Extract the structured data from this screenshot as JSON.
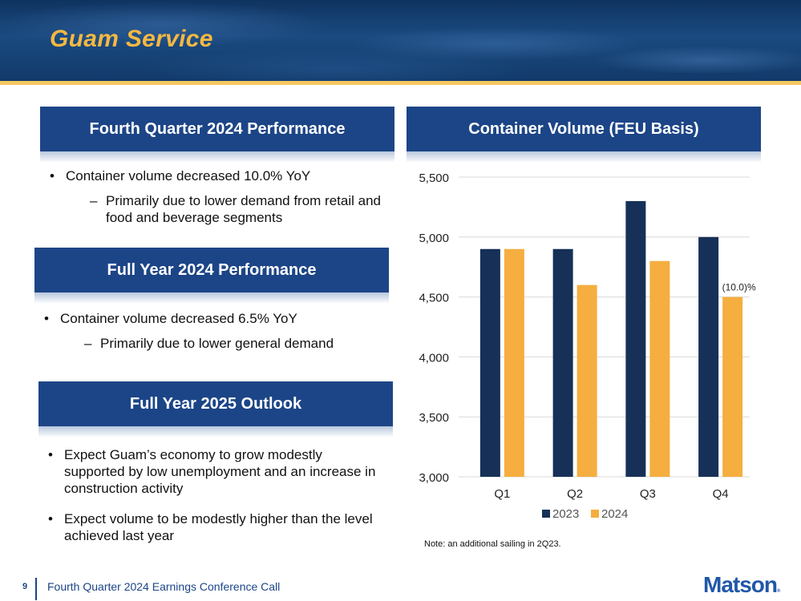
{
  "page": {
    "title": "Guam Service",
    "footer": {
      "page_number": "9",
      "text": "Fourth Quarter 2024 Earnings Conference Call",
      "logo": "Matson",
      "logo_mark": "®"
    }
  },
  "colors": {
    "title": "#f5b841",
    "header_bg": "#1c4587",
    "series_2023": "#163057",
    "series_2024": "#f5ae3f",
    "accent_stripe": "#f5c862"
  },
  "sections": [
    {
      "header": "Fourth Quarter 2024 Performance",
      "bullets": [
        {
          "text": "Container volume decreased 10.0% YoY",
          "sub": [
            "Primarily due to lower demand from retail and food and beverage segments"
          ]
        }
      ]
    },
    {
      "header": "Full Year 2024 Performance",
      "bullets": [
        {
          "text": "Container volume decreased 6.5% YoY",
          "sub": [
            "Primarily due to lower general demand"
          ]
        }
      ]
    },
    {
      "header": "Full Year 2025 Outlook",
      "bullets": [
        {
          "text": "Expect Guam’s economy to grow modestly supported by low unemployment and an increase in construction activity",
          "sub": []
        },
        {
          "text": "Expect volume to be modestly higher than the level achieved last year",
          "sub": []
        }
      ]
    }
  ],
  "chart_header": "Container Volume (FEU Basis)",
  "chart_note": "Note: an additional sailing in 2Q23.",
  "chart_data": {
    "type": "bar",
    "title": "Container Volume (FEU Basis)",
    "categories": [
      "Q1",
      "Q2",
      "Q3",
      "Q4"
    ],
    "series": [
      {
        "name": "2023",
        "color": "#163057",
        "values": [
          4900,
          4900,
          5300,
          5000
        ]
      },
      {
        "name": "2024",
        "color": "#f5ae3f",
        "values": [
          4900,
          4600,
          4800,
          4500
        ]
      }
    ],
    "ylim": [
      3000,
      5500
    ],
    "yticks": [
      3000,
      3500,
      4000,
      4500,
      5000,
      5500
    ],
    "ytick_labels": [
      "3,000",
      "3,500",
      "4,000",
      "4,500",
      "5,000",
      "5,500"
    ],
    "xlabel": "",
    "ylabel": "",
    "grid": true,
    "legend": "bottom",
    "annotations": [
      {
        "category": "Q4",
        "series": "2024",
        "text": "(10.0)%"
      }
    ]
  }
}
